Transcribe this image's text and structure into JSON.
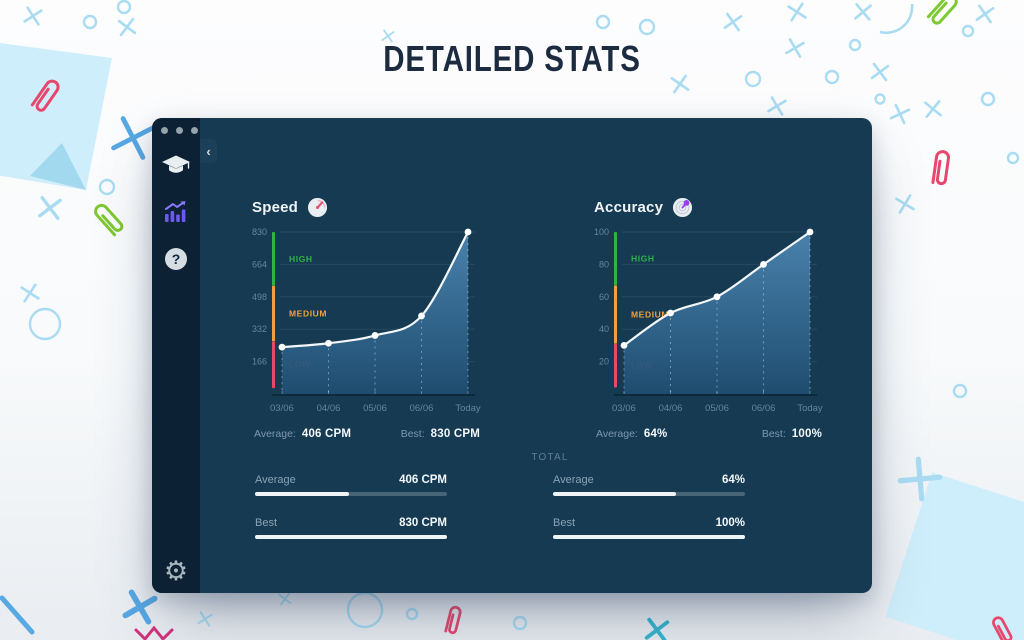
{
  "title": "DETAILED STATS",
  "window": {
    "collapse_label": "‹",
    "sidebar_icons": [
      "graduation-cap-icon",
      "stats-bars-icon",
      "help-icon",
      "gear-icon"
    ]
  },
  "speed": {
    "label": "Speed",
    "icon": "speedometer-icon",
    "average_label": "Average:",
    "average_value": "406 CPM",
    "best_label": "Best:",
    "best_value": "830 CPM"
  },
  "accuracy": {
    "label": "Accuracy",
    "icon": "target-icon",
    "average_label": "Average:",
    "average_value": "64%",
    "best_label": "Best:",
    "best_value": "100%"
  },
  "total": {
    "label": "TOTAL",
    "speed": {
      "average_label": "Average",
      "average_value": "406 CPM",
      "average_percent": 49,
      "best_label": "Best",
      "best_value": "830 CPM",
      "best_percent": 100
    },
    "accuracy": {
      "average_label": "Average",
      "average_value": "64%",
      "average_percent": 64,
      "best_label": "Best",
      "best_value": "100%",
      "best_percent": 100
    }
  },
  "chart_data": [
    {
      "type": "area",
      "title": "Speed",
      "unit": "CPM",
      "x": [
        "03/06",
        "04/06",
        "05/06",
        "06/06",
        "Today"
      ],
      "values": [
        240,
        260,
        300,
        400,
        830
      ],
      "yticks": [
        166,
        332,
        498,
        664,
        830
      ],
      "ylim": [
        0,
        830
      ],
      "average": 406,
      "best": 830,
      "grid": true,
      "zones": [
        {
          "label": "HIGH",
          "color": "#2fb14b",
          "from": 555,
          "to": 830
        },
        {
          "label": "MEDIUM",
          "color": "#f2a03d",
          "from": 270,
          "to": 555
        },
        {
          "label": "LOW",
          "color": "#e84a66",
          "from": 30,
          "to": 270
        }
      ]
    },
    {
      "type": "area",
      "title": "Accuracy",
      "unit": "%",
      "x": [
        "03/06",
        "04/06",
        "05/06",
        "06/06",
        "Today"
      ],
      "values": [
        30,
        50,
        60,
        80,
        100
      ],
      "yticks": [
        20,
        40,
        60,
        80,
        100
      ],
      "ylim": [
        0,
        100
      ],
      "average": 64,
      "best": 100,
      "grid": true,
      "zones": [
        {
          "label": "HIGH",
          "color": "#2fb14b",
          "from": 67,
          "to": 100
        },
        {
          "label": "MEDIUM",
          "color": "#f2a03d",
          "from": 31,
          "to": 67
        },
        {
          "label": "LOW",
          "color": "#e84a66",
          "from": 4,
          "to": 31
        }
      ]
    }
  ],
  "colors": {
    "window_bg": "#153a52",
    "sidebar_bg": "#0c2234",
    "line": "#f3f7fa",
    "area_top": "#4e88b4",
    "area_bottom": "#1f4e72",
    "axis_text": "#6685a0",
    "high": "#2fb14b",
    "medium": "#f2a03d",
    "low": "#e84a66",
    "accent_purple": "#6d59f2",
    "deco_lightblue": "#a9dcf2",
    "deco_blue": "#58a8e4",
    "deco_red": "#e8476d",
    "deco_green": "#7ec832",
    "deco_teal": "#35b6cf",
    "deco_magenta": "#d4317c"
  }
}
